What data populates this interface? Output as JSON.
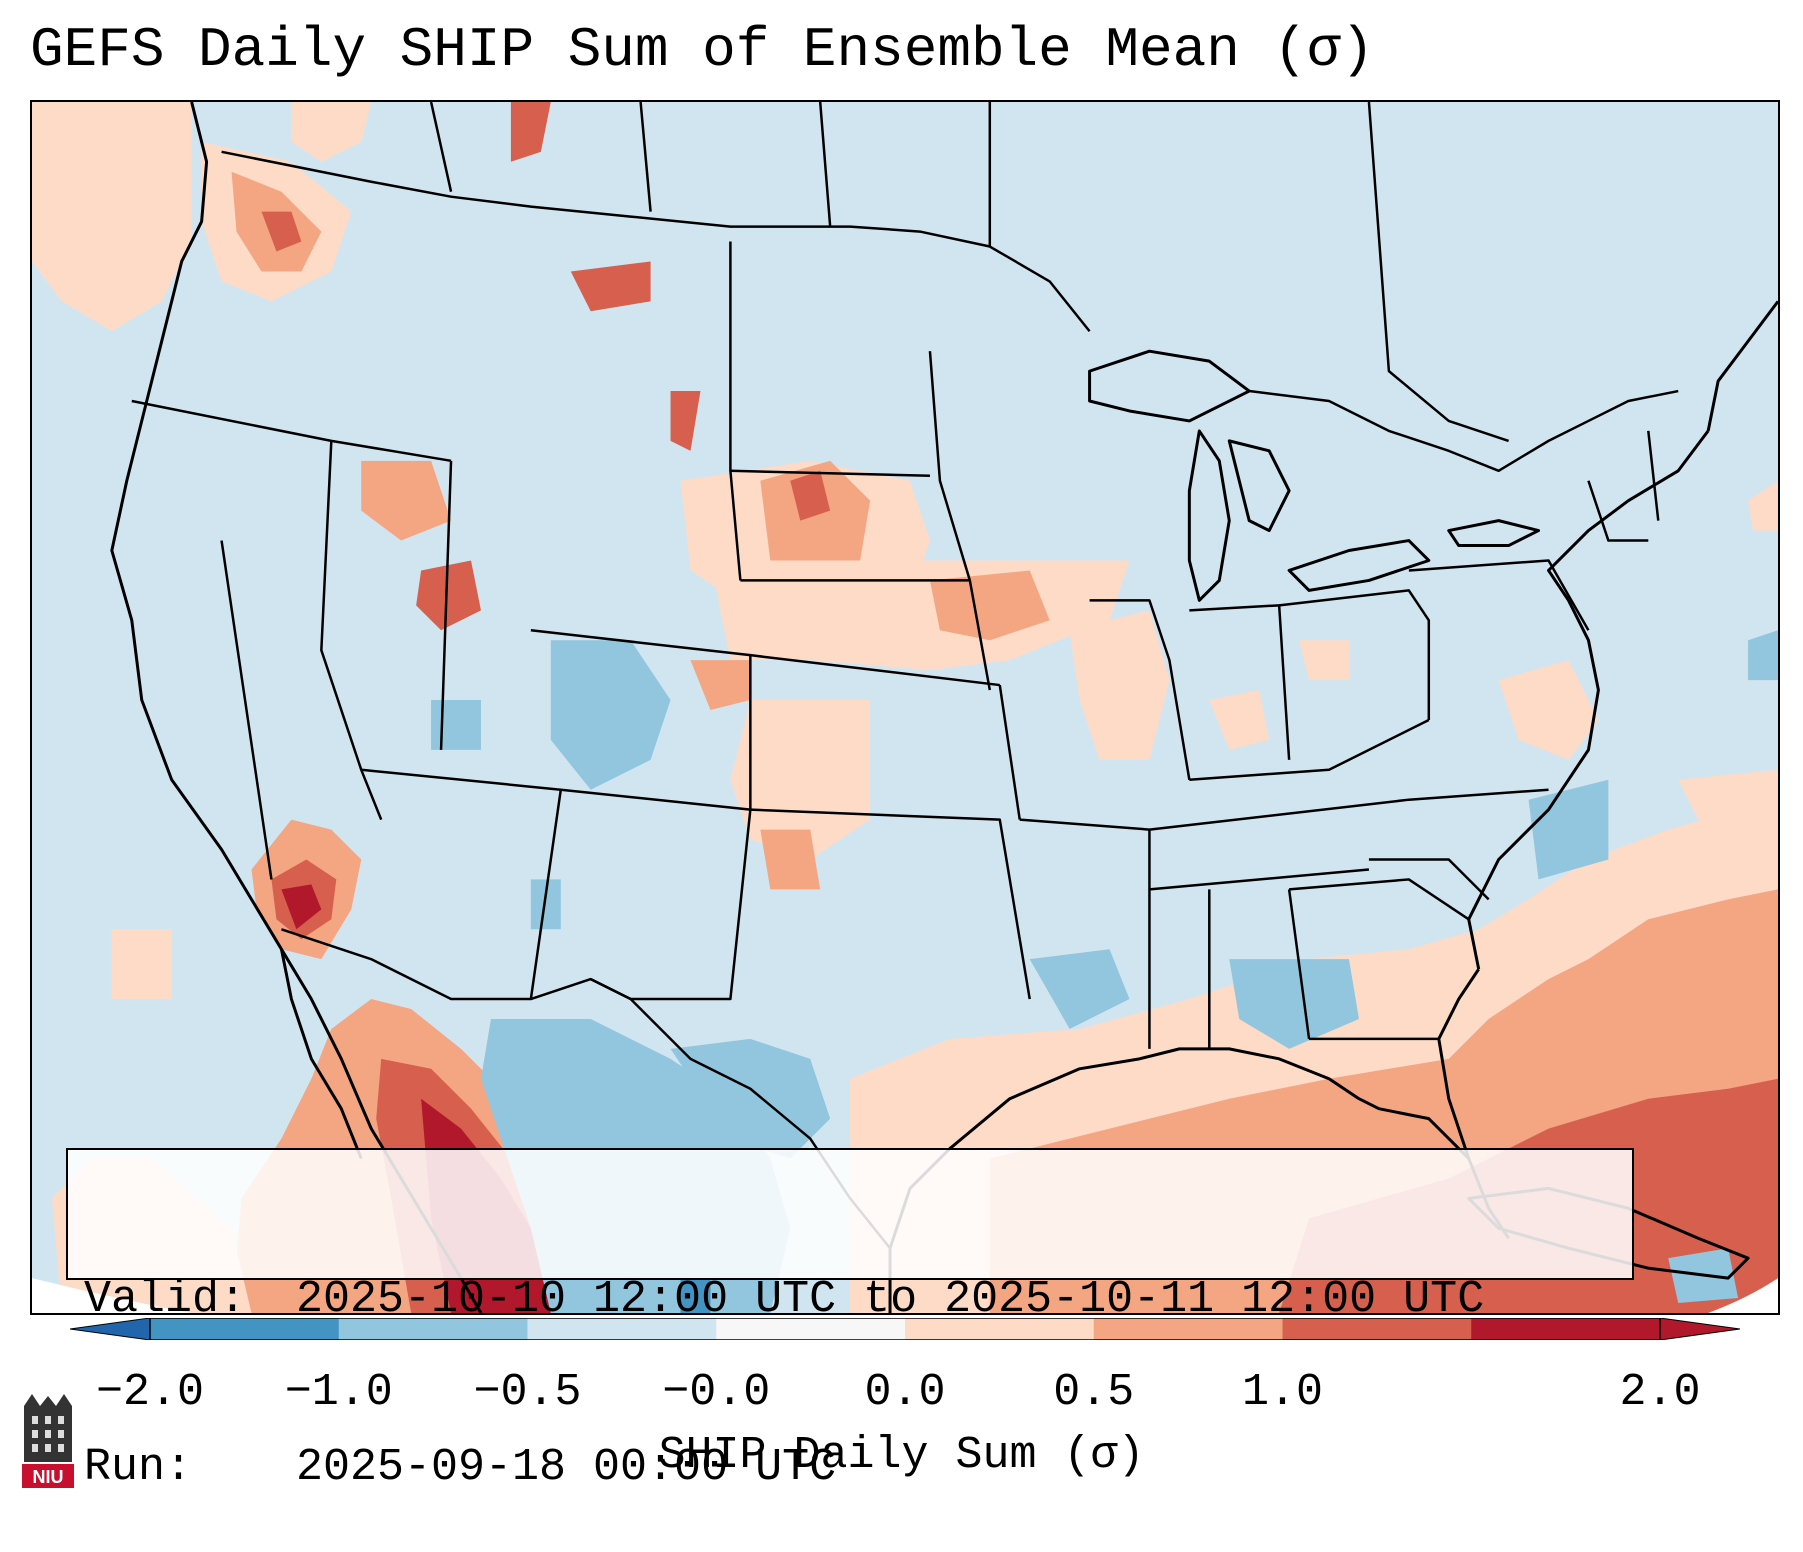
{
  "title": "GEFS Daily SHIP Sum of Ensemble Mean (σ)",
  "info": {
    "valid_label": "Valid:",
    "valid_value": "2025-10-10 12:00 UTC to 2025-10-11 12:00 UTC",
    "run_label": "Run:",
    "run_value": "2025-09-18 00:00 UTC"
  },
  "colorbar": {
    "label": "SHIP Daily Sum (σ)",
    "ticks": [
      "−2.0",
      "−1.0",
      "−0.5",
      "−0.0",
      "0.0",
      "0.5",
      "1.0",
      "2.0"
    ],
    "colors": [
      "#4393c3",
      "#92c5de",
      "#d1e5f0",
      "#f7f7f7",
      "#fddbc7",
      "#f4a582",
      "#d6604d",
      "#b2182b"
    ],
    "under_color": "#2166ac",
    "over_color": "#b2182b"
  },
  "logo": {
    "text": "NIU"
  },
  "map_layers": [
    "state-boundaries",
    "country-boundaries",
    "coastlines",
    "lakes",
    "shading-positive-anomaly",
    "shading-negative-anomaly"
  ]
}
